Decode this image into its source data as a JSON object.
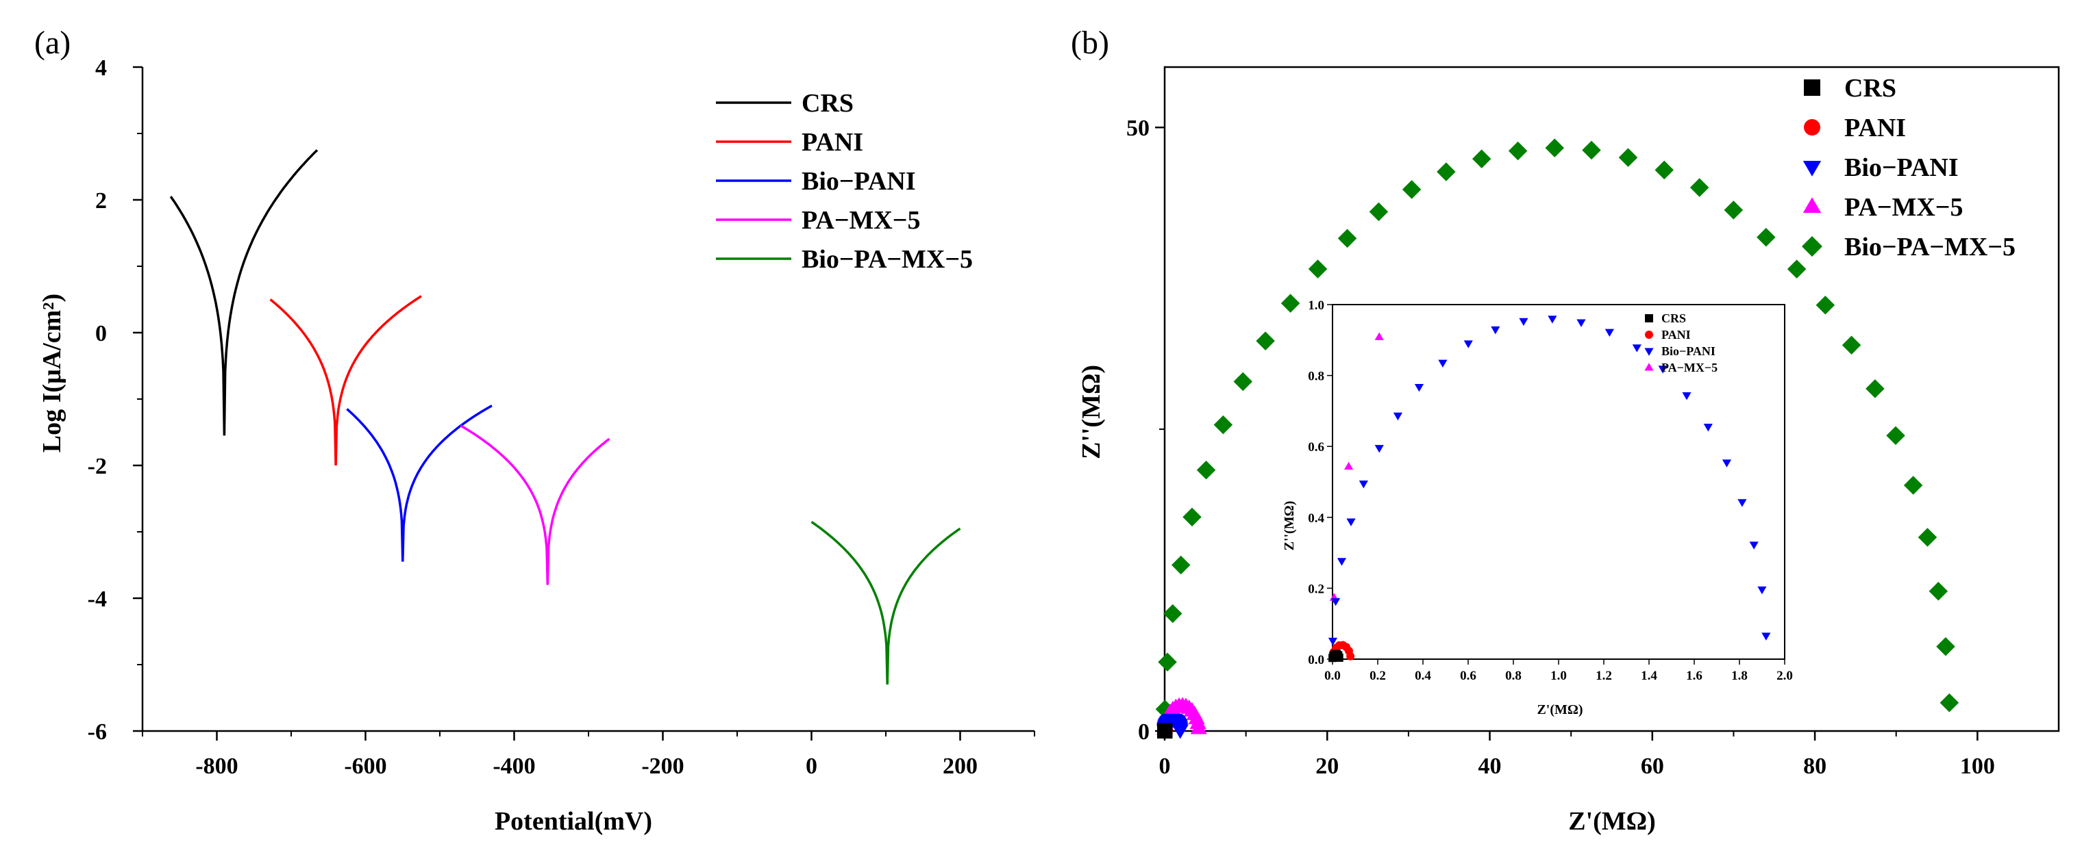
{
  "chart_data": [
    {
      "panel": "(a)",
      "type": "line",
      "xlabel": "Potential(mV)",
      "ylabel": "Log I(μA/cm²)",
      "xlim": [
        -900,
        300
      ],
      "ylim": [
        -6,
        4
      ],
      "xticks": [
        -800,
        -600,
        -400,
        -200,
        0,
        200
      ],
      "yticks": [
        4,
        2,
        0,
        -2,
        -4,
        -6
      ],
      "legend_position": "top-right",
      "series": [
        {
          "name": "CRS",
          "color": "#000000",
          "ecorr": -790,
          "icorr": -1.55,
          "x_start": -862,
          "y_start": 2.05,
          "x_end": -665,
          "y_end": 2.75
        },
        {
          "name": "PANI",
          "color": "#ff0000",
          "ecorr": -640,
          "icorr": -2.0,
          "x_start": -728,
          "y_start": 0.5,
          "x_end": -525,
          "y_end": 0.55
        },
        {
          "name": "Bio−PANI",
          "color": "#0000ff",
          "ecorr": -550,
          "icorr": -3.45,
          "x_start": -625,
          "y_start": -1.15,
          "x_end": -430,
          "y_end": -1.1
        },
        {
          "name": "PA−MX−5",
          "color": "#ff00ff",
          "ecorr": -355,
          "icorr": -3.8,
          "x_start": -472,
          "y_start": -1.4,
          "x_end": -272,
          "y_end": -1.6
        },
        {
          "name": "Bio−PA−MX−5",
          "color": "#008000",
          "ecorr": 102,
          "icorr": -5.3,
          "x_start": 0,
          "y_start": -2.85,
          "x_end": 200,
          "y_end": -2.95
        }
      ]
    },
    {
      "panel": "(b)",
      "type": "scatter",
      "xlabel": "Z'(MΩ)",
      "ylabel": "Z''(MΩ)",
      "xlim": [
        0,
        110
      ],
      "ylim": [
        0,
        55
      ],
      "xticks": [
        0,
        20,
        40,
        60,
        80,
        100
      ],
      "yticks": [
        0,
        50
      ],
      "legend_position": "top-right",
      "series": [
        {
          "name": "CRS",
          "color": "#000000",
          "marker": "square",
          "diameter": 0.03,
          "n": 6
        },
        {
          "name": "PANI",
          "color": "#ff0000",
          "marker": "circle",
          "diameter": 0.08,
          "n": 8
        },
        {
          "name": "Bio−PANI",
          "color": "#0000ff",
          "marker": "triangle-down",
          "diameter": 1.92,
          "n": 24
        },
        {
          "name": "PA−MX−5",
          "color": "#ff00ff",
          "marker": "triangle-up",
          "diameter": 4.2,
          "n": 16
        },
        {
          "name": "Bio−PA−MX−5",
          "color": "#008000",
          "marker": "diamond",
          "diameter": 96.6,
          "n": 34
        }
      ],
      "inset": {
        "xlabel": "Z'(MΩ)",
        "ylabel": "Z''(MΩ)",
        "xlim": [
          0,
          2.0
        ],
        "ylim": [
          0,
          1.0
        ],
        "xticks": [
          "0.0",
          "0.2",
          "0.4",
          "0.6",
          "0.8",
          "1.0",
          "1.2",
          "1.4",
          "1.6",
          "1.8",
          "2.0"
        ],
        "yticks": [
          "0.0",
          "0.2",
          "0.4",
          "0.6",
          "0.8",
          "1.0"
        ],
        "legend": [
          "CRS",
          "PANI",
          "Bio−PANI",
          "PA−MX−5"
        ]
      }
    }
  ]
}
